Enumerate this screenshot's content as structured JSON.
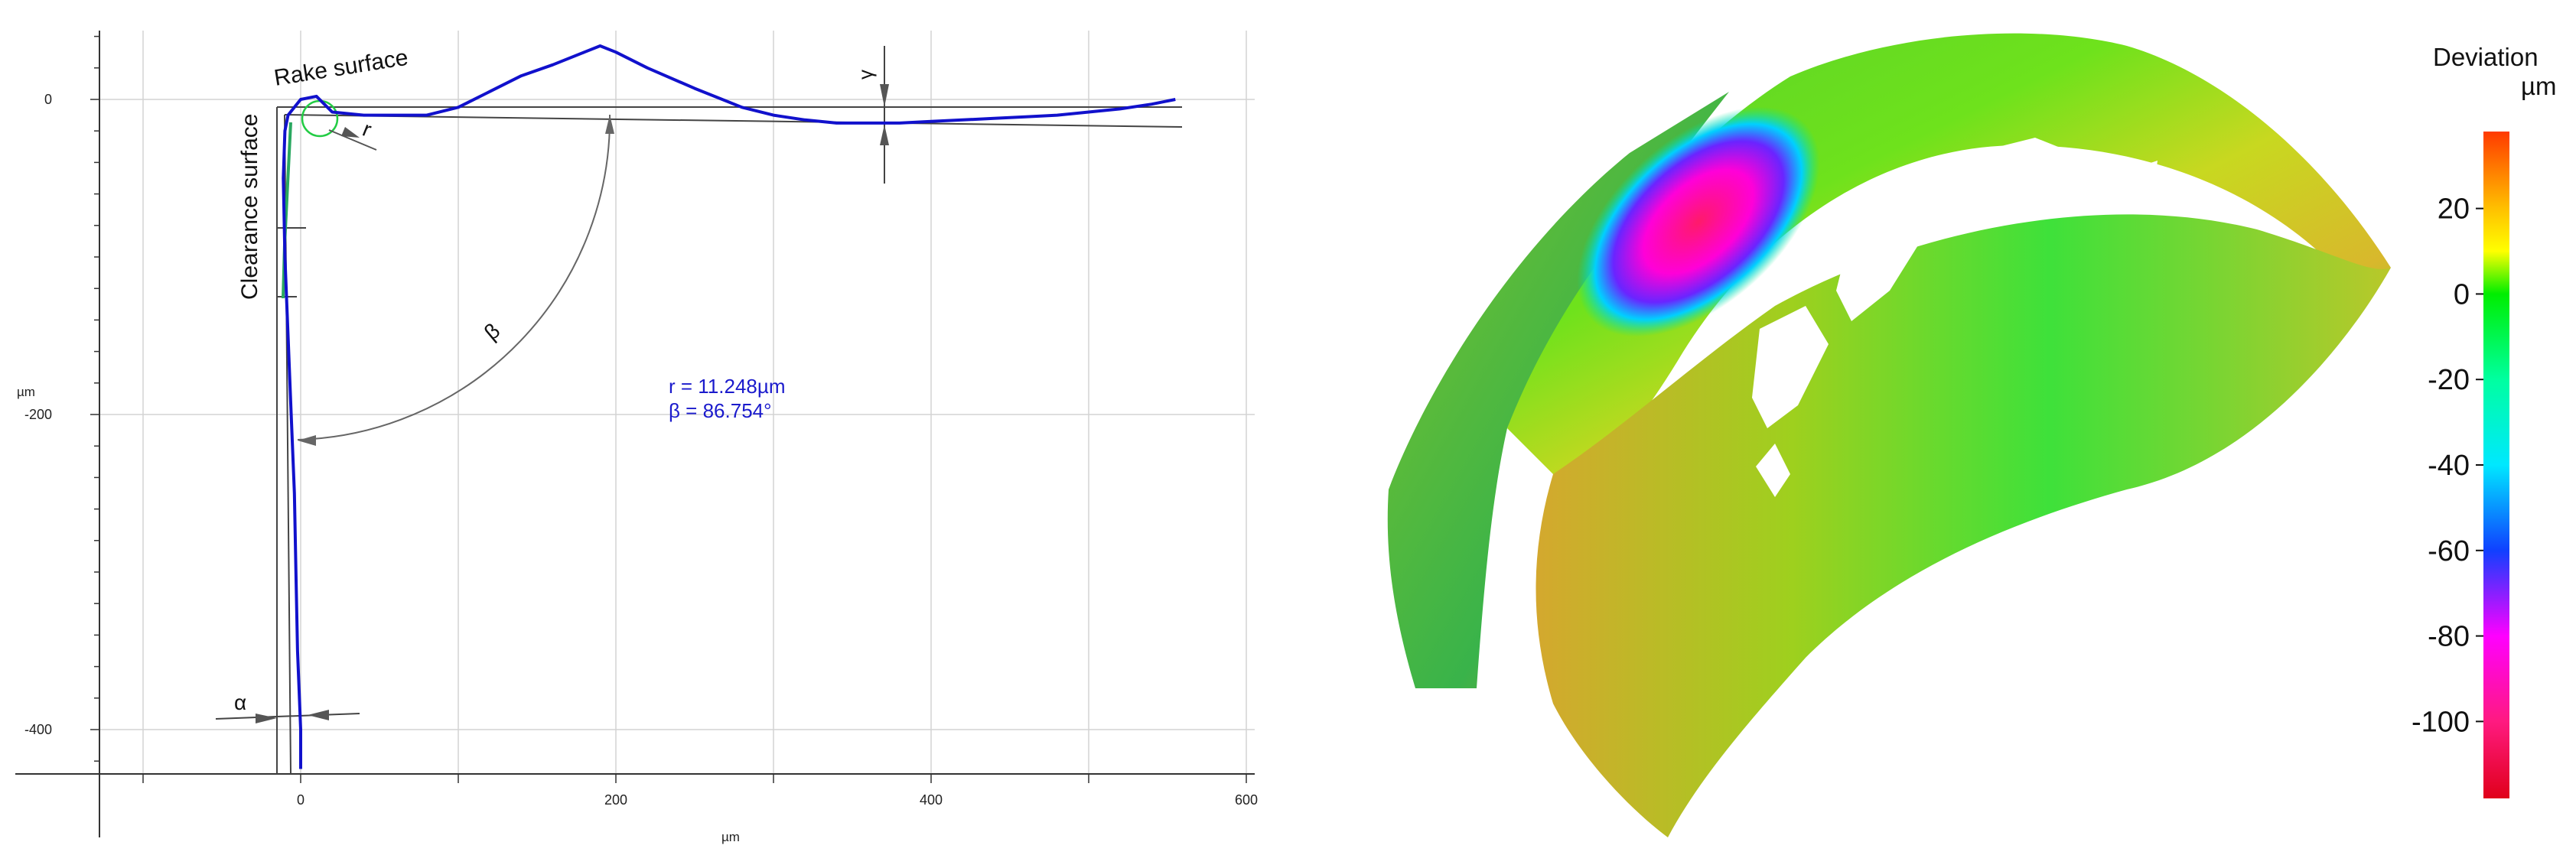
{
  "chart_data": [
    {
      "type": "line",
      "title": "",
      "xlabel": "µm",
      "ylabel": "µm",
      "xlim": [
        -130,
        610
      ],
      "ylim": [
        -430,
        45
      ],
      "x_ticks": [
        0,
        200,
        400,
        600
      ],
      "y_ticks": [
        0,
        -200,
        -400
      ],
      "x_tick_labels": [
        "0",
        "200",
        "400",
        "600"
      ],
      "y_tick_labels": [
        "0",
        "-200",
        "-400"
      ],
      "grid": true,
      "series": [
        {
          "color": "#1111cc",
          "x": [
            0,
            0,
            -2,
            -3,
            -4,
            -6,
            -8,
            -10,
            -11,
            -10,
            -8,
            0,
            10,
            20,
            40,
            60,
            80,
            100,
            120,
            140,
            160,
            180,
            190,
            200,
            220,
            250,
            280,
            300,
            320,
            340,
            360,
            380,
            400,
            420,
            440,
            460,
            480,
            500,
            520,
            540,
            555
          ],
          "y": [
            -425,
            -400,
            -350,
            -300,
            -250,
            -200,
            -150,
            -100,
            -50,
            -20,
            -10,
            0,
            2,
            -8,
            -10,
            -10,
            -10,
            -5,
            5,
            15,
            22,
            30,
            34,
            30,
            20,
            7,
            -5,
            -10,
            -13,
            -15,
            -15,
            -15,
            -14,
            -13,
            -12,
            -11,
            -10,
            -8,
            -6,
            -3,
            0
          ]
        }
      ],
      "labels": {
        "rake_surface": "Rake surface",
        "clearance_surface": "Clearance surface",
        "r_symbol": "r",
        "beta_symbol": "β",
        "alpha_symbol": "α",
        "gamma_symbol": "γ"
      },
      "results": {
        "radius": "r = 11.248µm",
        "wedge_angle": "β = 86.754°"
      }
    },
    {
      "type": "heatmap",
      "title": "",
      "colorbar_title": "Deviation",
      "colorbar_unit": "µm",
      "colorbar_range": [
        -118,
        38
      ],
      "colorbar_ticks": [
        20,
        0,
        -20,
        -40,
        -60,
        -80,
        -100
      ],
      "colorbar_tick_labels": [
        "20",
        "0",
        "-20",
        "-40",
        "-60",
        "-80",
        "-100"
      ],
      "colormap": [
        {
          "value": 38,
          "color": "#ff3a00"
        },
        {
          "value": 20,
          "color": "#ffc000"
        },
        {
          "value": 10,
          "color": "#ffff00"
        },
        {
          "value": 0,
          "color": "#00ee00"
        },
        {
          "value": -20,
          "color": "#00ffa0"
        },
        {
          "value": -40,
          "color": "#00e8ff"
        },
        {
          "value": -60,
          "color": "#1040ff"
        },
        {
          "value": -80,
          "color": "#ff00ff"
        },
        {
          "value": -100,
          "color": "#ff1a80"
        },
        {
          "value": -118,
          "color": "#e0001a"
        }
      ]
    }
  ]
}
